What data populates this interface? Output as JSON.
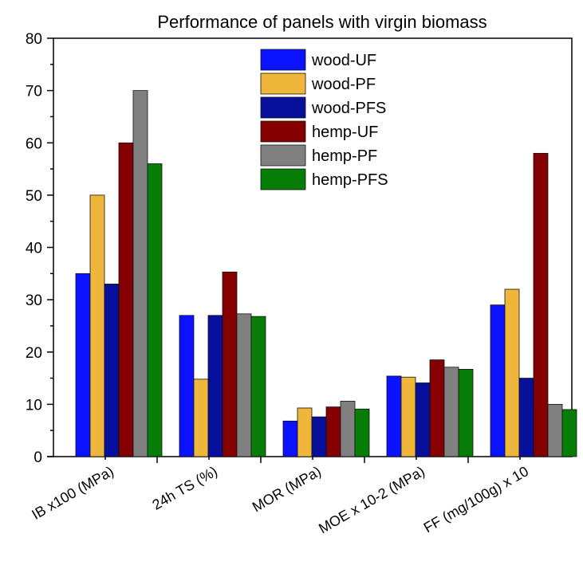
{
  "chart_data": {
    "type": "bar",
    "title": "Performance of panels with virgin biomass",
    "xlabel": "",
    "ylabel": "",
    "ylim": [
      0,
      80
    ],
    "yticks": [
      0,
      10,
      20,
      30,
      40,
      50,
      60,
      70,
      80
    ],
    "categories": [
      "IB x100 (MPa)",
      "24h TS (%)",
      "MOR (MPa)",
      "MOE x 10-2 (MPa)",
      "FF (mg/100g) x 10"
    ],
    "legend_position": "top-right",
    "series": [
      {
        "name": "wood-UF",
        "color": "#0a12ff",
        "values": [
          35,
          27,
          6.8,
          15.4,
          29
        ]
      },
      {
        "name": "wood-PF",
        "color": "#eeb63a",
        "values": [
          50,
          14.8,
          9.3,
          15.2,
          32
        ]
      },
      {
        "name": "wood-PFS",
        "color": "#06109a",
        "values": [
          33,
          27,
          7.6,
          14.1,
          15
        ]
      },
      {
        "name": "hemp-UF",
        "color": "#850000",
        "values": [
          60,
          35.3,
          9.5,
          18.5,
          58
        ]
      },
      {
        "name": "hemp-PF",
        "color": "#808080",
        "values": [
          70,
          27.3,
          10.6,
          17.1,
          10
        ]
      },
      {
        "name": "hemp-PFS",
        "color": "#067d06",
        "values": [
          56,
          26.8,
          9.1,
          16.7,
          9
        ]
      }
    ]
  }
}
